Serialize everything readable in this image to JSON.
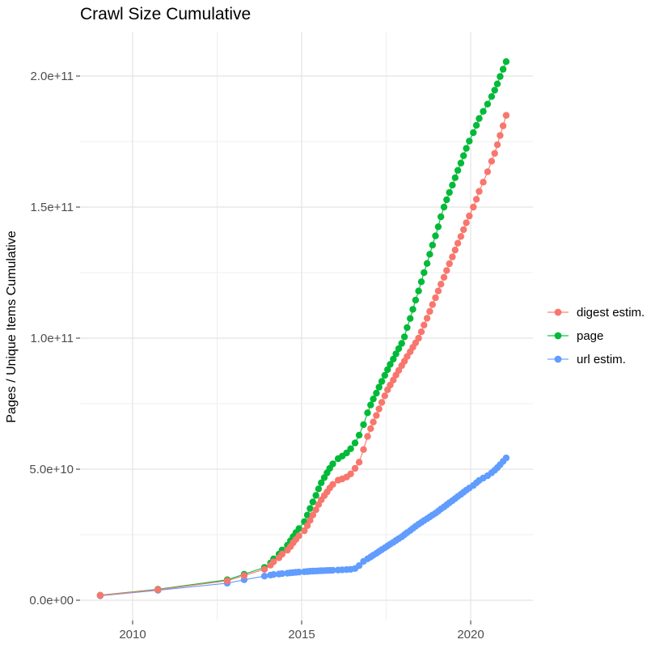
{
  "chart_data": {
    "type": "scatter",
    "title": "Crawl Size Cumulative",
    "xlabel": "",
    "ylabel": "Pages / Unique Items Cumulative",
    "value_unit": "1e9",
    "grid": "on",
    "legend_position": "right",
    "x_axis": {
      "tick_values": [
        2010,
        2015,
        2020
      ],
      "tick_labels": [
        "2010",
        "2015",
        "2020"
      ],
      "minor_tick_values": [
        2012.5,
        2017.5
      ],
      "range": [
        2008.45,
        2021.85
      ]
    },
    "y_axis": {
      "tick_values": [
        0,
        50,
        100,
        150,
        200
      ],
      "tick_labels": [
        "0.0e+00",
        "5.0e+10",
        "1.0e+11",
        "1.5e+11",
        "2.0e+11"
      ],
      "minor_tick_values": [
        25,
        75,
        125,
        175
      ],
      "range": [
        -7.7,
        216.7
      ]
    },
    "series": [
      {
        "name": "digest estim.",
        "color": "#F8766D",
        "points": [
          [
            2009.04,
            1.85
          ],
          [
            2010.75,
            4.05
          ],
          [
            2012.8,
            7.4
          ],
          [
            2013.3,
            9.4
          ],
          [
            2013.9,
            11.8
          ],
          [
            2014.08,
            13.4
          ],
          [
            2014.17,
            14.7
          ],
          [
            2014.33,
            16.2
          ],
          [
            2014.42,
            17.6
          ],
          [
            2014.58,
            19.1
          ],
          [
            2014.67,
            20.5
          ],
          [
            2014.75,
            21.9
          ],
          [
            2014.83,
            23.2
          ],
          [
            2014.92,
            24.6
          ],
          [
            2015.08,
            26.5
          ],
          [
            2015.17,
            28.5
          ],
          [
            2015.25,
            30.5
          ],
          [
            2015.33,
            32.5
          ],
          [
            2015.42,
            34.5
          ],
          [
            2015.5,
            36.5
          ],
          [
            2015.58,
            38.3
          ],
          [
            2015.67,
            39.9
          ],
          [
            2015.75,
            41.3
          ],
          [
            2015.83,
            42.8
          ],
          [
            2015.92,
            44.2
          ],
          [
            2016.08,
            45.8
          ],
          [
            2016.2,
            46.3
          ],
          [
            2016.33,
            47.0
          ],
          [
            2016.45,
            48.2
          ],
          [
            2016.58,
            50.3
          ],
          [
            2016.7,
            52.7
          ],
          [
            2016.83,
            57.5
          ],
          [
            2016.95,
            62.5
          ],
          [
            2017.04,
            65.5
          ],
          [
            2017.12,
            68.0
          ],
          [
            2017.21,
            70.5
          ],
          [
            2017.29,
            73.0
          ],
          [
            2017.37,
            75.5
          ],
          [
            2017.46,
            78.0
          ],
          [
            2017.54,
            80.3
          ],
          [
            2017.62,
            82.1
          ],
          [
            2017.71,
            84.0
          ],
          [
            2017.79,
            85.9
          ],
          [
            2017.87,
            87.7
          ],
          [
            2017.96,
            89.5
          ],
          [
            2018.04,
            91.2
          ],
          [
            2018.12,
            93.0
          ],
          [
            2018.21,
            94.8
          ],
          [
            2018.29,
            96.5
          ],
          [
            2018.37,
            98.2
          ],
          [
            2018.46,
            100.0
          ],
          [
            2018.54,
            102.4
          ],
          [
            2018.62,
            105.0
          ],
          [
            2018.71,
            107.6
          ],
          [
            2018.79,
            110.2
          ],
          [
            2018.87,
            112.8
          ],
          [
            2018.96,
            115.4
          ],
          [
            2019.04,
            118.0
          ],
          [
            2019.12,
            120.6
          ],
          [
            2019.21,
            123.2
          ],
          [
            2019.29,
            125.8
          ],
          [
            2019.37,
            128.4
          ],
          [
            2019.46,
            131.0
          ],
          [
            2019.54,
            133.6
          ],
          [
            2019.62,
            136.2
          ],
          [
            2019.71,
            138.8
          ],
          [
            2019.79,
            141.4
          ],
          [
            2019.87,
            144.0
          ],
          [
            2019.96,
            146.6
          ],
          [
            2020.08,
            150.0
          ],
          [
            2020.17,
            153.0
          ],
          [
            2020.25,
            156.0
          ],
          [
            2020.37,
            159.5
          ],
          [
            2020.5,
            163.5
          ],
          [
            2020.62,
            167.5
          ],
          [
            2020.71,
            170.5
          ],
          [
            2020.79,
            173.8
          ],
          [
            2020.87,
            177.3
          ],
          [
            2020.96,
            181.0
          ],
          [
            2021.05,
            185.0
          ]
        ]
      },
      {
        "name": "page",
        "color": "#00BA38",
        "points": [
          [
            2009.04,
            1.9
          ],
          [
            2010.75,
            4.2
          ],
          [
            2012.8,
            7.8
          ],
          [
            2013.3,
            9.9
          ],
          [
            2013.9,
            12.5
          ],
          [
            2014.08,
            14.2
          ],
          [
            2014.17,
            15.8
          ],
          [
            2014.33,
            17.6
          ],
          [
            2014.42,
            19.2
          ],
          [
            2014.58,
            21.0
          ],
          [
            2014.67,
            22.7
          ],
          [
            2014.75,
            24.3
          ],
          [
            2014.83,
            25.8
          ],
          [
            2014.92,
            27.3
          ],
          [
            2015.08,
            30.0
          ],
          [
            2015.17,
            32.5
          ],
          [
            2015.25,
            35.0
          ],
          [
            2015.33,
            37.5
          ],
          [
            2015.42,
            40.0
          ],
          [
            2015.5,
            42.5
          ],
          [
            2015.58,
            44.8
          ],
          [
            2015.67,
            46.8
          ],
          [
            2015.75,
            48.6
          ],
          [
            2015.83,
            50.3
          ],
          [
            2015.92,
            52.0
          ],
          [
            2016.08,
            54.0
          ],
          [
            2016.2,
            55.0
          ],
          [
            2016.33,
            56.2
          ],
          [
            2016.45,
            57.8
          ],
          [
            2016.58,
            60.0
          ],
          [
            2016.7,
            63.0
          ],
          [
            2016.83,
            67.0
          ],
          [
            2016.95,
            71.5
          ],
          [
            2017.04,
            74.5
          ],
          [
            2017.12,
            76.8
          ],
          [
            2017.21,
            79.0
          ],
          [
            2017.29,
            81.3
          ],
          [
            2017.37,
            83.5
          ],
          [
            2017.46,
            85.8
          ],
          [
            2017.54,
            88.0
          ],
          [
            2017.62,
            90.0
          ],
          [
            2017.71,
            92.0
          ],
          [
            2017.79,
            94.0
          ],
          [
            2017.87,
            96.0
          ],
          [
            2017.96,
            98.0
          ],
          [
            2018.04,
            100.5
          ],
          [
            2018.12,
            104.0
          ],
          [
            2018.21,
            107.5
          ],
          [
            2018.29,
            111.0
          ],
          [
            2018.37,
            114.5
          ],
          [
            2018.46,
            118.0
          ],
          [
            2018.54,
            121.5
          ],
          [
            2018.62,
            125.0
          ],
          [
            2018.71,
            128.5
          ],
          [
            2018.79,
            132.0
          ],
          [
            2018.87,
            135.5
          ],
          [
            2018.96,
            139.0
          ],
          [
            2019.04,
            142.5
          ],
          [
            2019.12,
            146.3
          ],
          [
            2019.21,
            150.0
          ],
          [
            2019.29,
            152.8
          ],
          [
            2019.37,
            155.6
          ],
          [
            2019.46,
            158.4
          ],
          [
            2019.54,
            161.2
          ],
          [
            2019.62,
            164.0
          ],
          [
            2019.71,
            166.8
          ],
          [
            2019.79,
            169.6
          ],
          [
            2019.87,
            172.4
          ],
          [
            2019.96,
            175.2
          ],
          [
            2020.08,
            178.4
          ],
          [
            2020.17,
            181.2
          ],
          [
            2020.25,
            183.8
          ],
          [
            2020.37,
            186.5
          ],
          [
            2020.5,
            189.3
          ],
          [
            2020.62,
            192.2
          ],
          [
            2020.71,
            194.6
          ],
          [
            2020.79,
            197.0
          ],
          [
            2020.87,
            199.8
          ],
          [
            2020.96,
            202.6
          ],
          [
            2021.05,
            205.5
          ]
        ]
      },
      {
        "name": "url estim.",
        "color": "#619CFF",
        "points": [
          [
            2009.04,
            1.7
          ],
          [
            2010.75,
            3.8
          ],
          [
            2012.8,
            6.5
          ],
          [
            2013.3,
            7.8
          ],
          [
            2013.9,
            9.2
          ],
          [
            2014.08,
            9.6
          ],
          [
            2014.17,
            9.8
          ],
          [
            2014.33,
            10.0
          ],
          [
            2014.42,
            10.15
          ],
          [
            2014.58,
            10.3
          ],
          [
            2014.67,
            10.45
          ],
          [
            2014.75,
            10.55
          ],
          [
            2014.83,
            10.65
          ],
          [
            2014.92,
            10.75
          ],
          [
            2015.08,
            10.85
          ],
          [
            2015.17,
            10.95
          ],
          [
            2015.25,
            11.05
          ],
          [
            2015.33,
            11.1
          ],
          [
            2015.42,
            11.15
          ],
          [
            2015.5,
            11.2
          ],
          [
            2015.58,
            11.25
          ],
          [
            2015.67,
            11.3
          ],
          [
            2015.75,
            11.35
          ],
          [
            2015.83,
            11.4
          ],
          [
            2015.92,
            11.45
          ],
          [
            2016.08,
            11.5
          ],
          [
            2016.2,
            11.6
          ],
          [
            2016.33,
            11.7
          ],
          [
            2016.45,
            11.8
          ],
          [
            2016.58,
            12.1
          ],
          [
            2016.7,
            13.2
          ],
          [
            2016.83,
            14.8
          ],
          [
            2016.95,
            15.8
          ],
          [
            2017.04,
            16.5
          ],
          [
            2017.12,
            17.2
          ],
          [
            2017.21,
            17.9
          ],
          [
            2017.29,
            18.6
          ],
          [
            2017.37,
            19.3
          ],
          [
            2017.46,
            20.0
          ],
          [
            2017.54,
            20.7
          ],
          [
            2017.62,
            21.4
          ],
          [
            2017.71,
            22.1
          ],
          [
            2017.79,
            22.8
          ],
          [
            2017.87,
            23.5
          ],
          [
            2017.96,
            24.2
          ],
          [
            2018.04,
            25.0
          ],
          [
            2018.12,
            25.8
          ],
          [
            2018.21,
            26.6
          ],
          [
            2018.29,
            27.4
          ],
          [
            2018.37,
            28.2
          ],
          [
            2018.46,
            29.0
          ],
          [
            2018.54,
            29.7
          ],
          [
            2018.62,
            30.4
          ],
          [
            2018.71,
            31.1
          ],
          [
            2018.79,
            31.8
          ],
          [
            2018.87,
            32.5
          ],
          [
            2018.96,
            33.2
          ],
          [
            2019.04,
            34.0
          ],
          [
            2019.12,
            34.8
          ],
          [
            2019.21,
            35.6
          ],
          [
            2019.29,
            36.4
          ],
          [
            2019.37,
            37.2
          ],
          [
            2019.46,
            38.0
          ],
          [
            2019.54,
            38.8
          ],
          [
            2019.62,
            39.6
          ],
          [
            2019.71,
            40.4
          ],
          [
            2019.79,
            41.2
          ],
          [
            2019.87,
            42.0
          ],
          [
            2019.96,
            42.8
          ],
          [
            2020.08,
            43.8
          ],
          [
            2020.17,
            44.8
          ],
          [
            2020.25,
            45.7
          ],
          [
            2020.37,
            46.6
          ],
          [
            2020.5,
            47.5
          ],
          [
            2020.62,
            48.6
          ],
          [
            2020.71,
            49.6
          ],
          [
            2020.79,
            50.6
          ],
          [
            2020.87,
            51.7
          ],
          [
            2020.96,
            53.0
          ],
          [
            2021.05,
            54.3
          ]
        ]
      }
    ],
    "style": {
      "major_grid_color": "#E3E3E3",
      "minor_grid_color": "#EFEFEF",
      "tick_mark_color": "#333333",
      "tick_label_color": "#4d4d4d",
      "background": "#ffffff"
    }
  }
}
